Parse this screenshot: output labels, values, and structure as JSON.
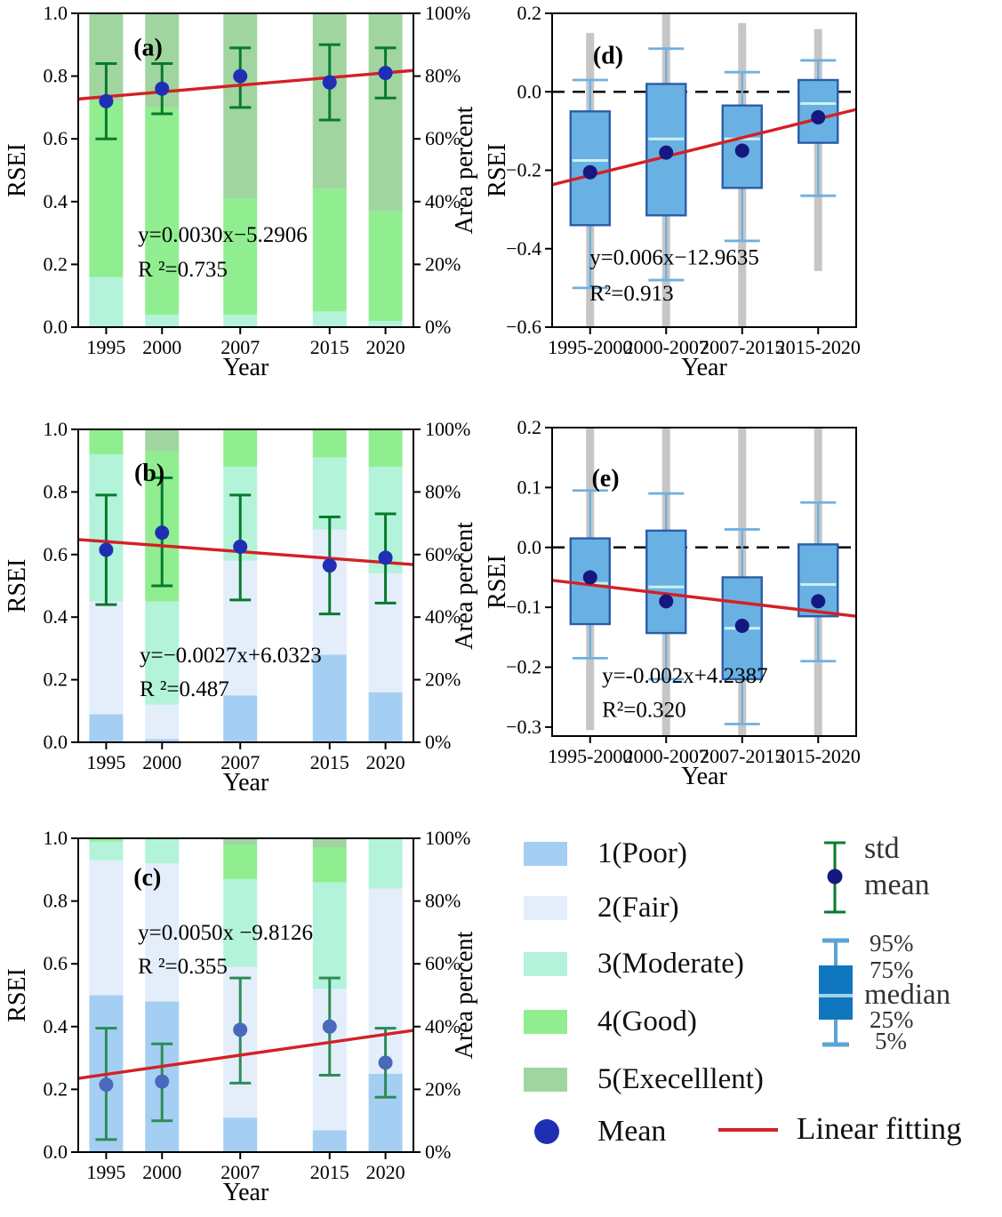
{
  "colors": {
    "class_colors": [
      "#a4cff3",
      "#e4eefb",
      "#b2f3da",
      "#90ee90",
      "#a0d5a0"
    ],
    "errorbar_green_dark": "#077a2e",
    "errorbar_green_sea": "#2e8b57",
    "mean_dot_blue": "#1e2fb4",
    "mean_dot_muted": "#4a69bd",
    "mean_dot_box": "#15197f",
    "fit_line_red": "#d42026",
    "box_fill": "#6ab1e3",
    "box_edge": "#2b5ca8",
    "whisker_blue": "#6fb0e0",
    "median_line": "#c9f2f0",
    "range_bar_gray": "#c6c6c6",
    "zero_line": "#000000",
    "axis_black": "#000000",
    "legend_box_fill": "#1077be",
    "legend_whisker": "#5ba3d4",
    "legend_median": "#9fd4ea"
  },
  "legend": {
    "classes": [
      {
        "label": "1(Poor)",
        "color": "#a4cff3"
      },
      {
        "label": "2(Fair)",
        "color": "#e4eefb"
      },
      {
        "label": "3(Moderate)",
        "color": "#b2f3da"
      },
      {
        "label": "4(Good)",
        "color": "#90ee90"
      },
      {
        "label": "5(Execelllent)",
        "color": "#a0d5a0"
      }
    ],
    "std_label": "std",
    "mean_label": "mean",
    "box_labels": {
      "p95": "95%",
      "p75": "75%",
      "median": "median",
      "p25": "25%",
      "p5": "5%"
    },
    "mean_row_label": "Mean",
    "fit_row_label": "Linear fitting"
  },
  "chart_data": [
    {
      "panel": "a",
      "type": "bar",
      "letter": "(a)",
      "xlabel": "Year",
      "ylabel": "RSEI",
      "ylabel_right": "Area percent",
      "ylim": [
        0,
        1
      ],
      "yticks_left": [
        {
          "v": 1.0,
          "label": "1.0"
        },
        {
          "v": 0.8,
          "label": "0.8"
        },
        {
          "v": 0.6,
          "label": "0.6"
        },
        {
          "v": 0.4,
          "label": "0.4"
        },
        {
          "v": 0.2,
          "label": "0.2"
        },
        {
          "v": 0.0,
          "label": "0.0"
        }
      ],
      "yticks_right": [
        {
          "v": 1.0,
          "label": "100%"
        },
        {
          "v": 0.8,
          "label": "80%"
        },
        {
          "v": 0.6,
          "label": "60%"
        },
        {
          "v": 0.4,
          "label": "40%"
        },
        {
          "v": 0.2,
          "label": "20%"
        },
        {
          "v": 0.0,
          "label": "0%"
        }
      ],
      "years": [
        1995,
        2000,
        2007,
        2015,
        2020
      ],
      "segments_percent": [
        [
          0,
          0,
          16,
          56,
          28
        ],
        [
          0,
          0,
          4,
          66,
          30
        ],
        [
          0,
          0,
          4,
          37,
          59
        ],
        [
          0,
          0,
          5,
          39,
          56
        ],
        [
          0,
          0,
          2,
          35,
          63
        ]
      ],
      "mean": [
        0.72,
        0.76,
        0.8,
        0.78,
        0.81
      ],
      "err_low": [
        0.6,
        0.68,
        0.7,
        0.66,
        0.73
      ],
      "err_high": [
        0.84,
        0.84,
        0.89,
        0.9,
        0.89
      ],
      "trend": {
        "y_start": 0.727,
        "y_end": 0.818
      },
      "equation": "y=0.0030x−5.2906",
      "r2": "R ²=0.735",
      "err_color": "#077a2e",
      "dot_color": "#1e2fb4",
      "annot": {
        "eq_x": 0.178,
        "eq_y1": 0.728,
        "eq_y2": 0.838,
        "letter_x": 0.165,
        "letter_y": 0.135
      }
    },
    {
      "panel": "b",
      "type": "bar",
      "letter": "(b)",
      "xlabel": "Year",
      "ylabel": "RSEI",
      "ylabel_right": "Area percent",
      "ylim": [
        0,
        1
      ],
      "yticks_left": [
        {
          "v": 1.0,
          "label": "1.0"
        },
        {
          "v": 0.8,
          "label": "0.8"
        },
        {
          "v": 0.6,
          "label": "0.6"
        },
        {
          "v": 0.4,
          "label": "0.4"
        },
        {
          "v": 0.2,
          "label": "0.2"
        },
        {
          "v": 0.0,
          "label": "0.0"
        }
      ],
      "yticks_right": [
        {
          "v": 1.0,
          "label": "100%"
        },
        {
          "v": 0.8,
          "label": "80%"
        },
        {
          "v": 0.6,
          "label": "60%"
        },
        {
          "v": 0.4,
          "label": "40%"
        },
        {
          "v": 0.2,
          "label": "20%"
        },
        {
          "v": 0.0,
          "label": "0%"
        }
      ],
      "years": [
        1995,
        2000,
        2007,
        2015,
        2020
      ],
      "segments_percent": [
        [
          9,
          36,
          47,
          8,
          0
        ],
        [
          1,
          11,
          33,
          48,
          7
        ],
        [
          15,
          43,
          30,
          12,
          0
        ],
        [
          28,
          40,
          23,
          9,
          0
        ],
        [
          16,
          38,
          34,
          12,
          0
        ]
      ],
      "mean": [
        0.615,
        0.67,
        0.625,
        0.565,
        0.59
      ],
      "err_low": [
        0.44,
        0.5,
        0.455,
        0.41,
        0.445
      ],
      "err_high": [
        0.79,
        0.845,
        0.79,
        0.72,
        0.73
      ],
      "trend": {
        "y_start": 0.648,
        "y_end": 0.568
      },
      "equation": "y=−0.0027x+6.0323",
      "r2": "R ²=0.487",
      "err_color": "#077a2e",
      "dot_color": "#1e2fb4",
      "annot": {
        "eq_x": 0.183,
        "eq_y1": 0.744,
        "eq_y2": 0.852,
        "letter_x": 0.167,
        "letter_y": 0.165
      }
    },
    {
      "panel": "c",
      "type": "bar",
      "letter": "(c)",
      "xlabel": "Year",
      "ylabel": "RSEI",
      "ylabel_right": "Area percent",
      "ylim": [
        0,
        1
      ],
      "yticks_left": [
        {
          "v": 1.0,
          "label": "1.0"
        },
        {
          "v": 0.8,
          "label": "0.8"
        },
        {
          "v": 0.6,
          "label": "0.6"
        },
        {
          "v": 0.4,
          "label": "0.4"
        },
        {
          "v": 0.2,
          "label": "0.2"
        },
        {
          "v": 0.0,
          "label": "0.0"
        }
      ],
      "yticks_right": [
        {
          "v": 1.0,
          "label": "100%"
        },
        {
          "v": 0.8,
          "label": "80%"
        },
        {
          "v": 0.6,
          "label": "60%"
        },
        {
          "v": 0.4,
          "label": "40%"
        },
        {
          "v": 0.2,
          "label": "20%"
        },
        {
          "v": 0.0,
          "label": "0%"
        }
      ],
      "years": [
        1995,
        2000,
        2007,
        2015,
        2020
      ],
      "segments_percent": [
        [
          50,
          43,
          6,
          1,
          0
        ],
        [
          48,
          44,
          8,
          0,
          0
        ],
        [
          11,
          48,
          28,
          11,
          2
        ],
        [
          7,
          45,
          34,
          11,
          3
        ],
        [
          25,
          59,
          16,
          0,
          0
        ]
      ],
      "mean": [
        0.215,
        0.225,
        0.39,
        0.4,
        0.285
      ],
      "err_low": [
        0.04,
        0.1,
        0.22,
        0.245,
        0.175
      ],
      "err_high": [
        0.395,
        0.345,
        0.555,
        0.555,
        0.395
      ],
      "trend": {
        "y_start": 0.235,
        "y_end": 0.388
      },
      "equation": "y=0.0050x −9.8126",
      "r2": "R ²=0.355",
      "err_color": "#2e8b57",
      "dot_color": "#4a69bd",
      "annot": {
        "eq_x": 0.178,
        "eq_y1": 0.323,
        "eq_y2": 0.43,
        "letter_x": 0.165,
        "letter_y": 0.15
      }
    },
    {
      "panel": "d",
      "type": "box",
      "letter": "(d)",
      "xlabel": "Year",
      "ylabel": "RSEI",
      "ylim": [
        -0.6,
        0.2
      ],
      "yticks_left": [
        {
          "v": 0.2,
          "label": "0.2"
        },
        {
          "v": 0.0,
          "label": "0.0"
        },
        {
          "v": -0.2,
          "label": "−0.2"
        },
        {
          "v": -0.4,
          "label": "−0.4"
        },
        {
          "v": -0.6,
          "label": "−0.6"
        }
      ],
      "categories": [
        "1995-2000",
        "2000-2007",
        "2007-2015",
        "2015-2020"
      ],
      "boxes": [
        {
          "q3": -0.05,
          "q1": -0.34,
          "median": -0.175,
          "mean": -0.205,
          "w_high": 0.03,
          "w_low": -0.5,
          "range_high": 0.15,
          "range_low": -0.62
        },
        {
          "q3": 0.02,
          "q1": -0.315,
          "median": -0.12,
          "mean": -0.155,
          "w_high": 0.11,
          "w_low": -0.48,
          "range_high": 0.25,
          "range_low": -0.62
        },
        {
          "q3": -0.035,
          "q1": -0.245,
          "median": -0.12,
          "mean": -0.15,
          "w_high": 0.05,
          "w_low": -0.38,
          "range_high": 0.175,
          "range_low": -0.62
        },
        {
          "q3": 0.03,
          "q1": -0.13,
          "median": -0.03,
          "mean": -0.065,
          "w_high": 0.08,
          "w_low": -0.265,
          "range_high": 0.16,
          "range_low": -0.457
        }
      ],
      "zero_line": true,
      "trend": {
        "y_start": -0.237,
        "y_end": -0.045
      },
      "equation": "y=0.006x−12.9635",
      "r2": "R²=0.913",
      "annot": {
        "eq_x": 0.123,
        "eq_y1": 0.8,
        "eq_y2": 0.915,
        "letter_x": 0.134,
        "letter_y": 0.16
      }
    },
    {
      "panel": "e",
      "type": "box",
      "letter": "(e)",
      "xlabel": "Year",
      "ylabel": "RSEI",
      "ylim": [
        -0.315,
        0.2
      ],
      "yticks_left": [
        {
          "v": 0.2,
          "label": "0.2"
        },
        {
          "v": 0.1,
          "label": "0.1"
        },
        {
          "v": 0.0,
          "label": "0.0"
        },
        {
          "v": -0.1,
          "label": "−0.1"
        },
        {
          "v": -0.2,
          "label": "−0.2"
        },
        {
          "v": -0.3,
          "label": "−0.3"
        }
      ],
      "categories": [
        "1995-2000",
        "2000-2007",
        "2007-2015",
        "2015-2020"
      ],
      "boxes": [
        {
          "q3": 0.015,
          "q1": -0.128,
          "median": -0.06,
          "mean": -0.05,
          "w_high": 0.095,
          "w_low": -0.185,
          "range_high": 0.25,
          "range_low": -0.305
        },
        {
          "q3": 0.028,
          "q1": -0.143,
          "median": -0.066,
          "mean": -0.09,
          "w_high": 0.09,
          "w_low": -0.22,
          "range_high": 0.25,
          "range_low": -0.34
        },
        {
          "q3": -0.05,
          "q1": -0.22,
          "median": -0.135,
          "mean": -0.131,
          "w_high": 0.03,
          "w_low": -0.295,
          "range_high": 0.25,
          "range_low": -0.34
        },
        {
          "q3": 0.005,
          "q1": -0.115,
          "median": -0.062,
          "mean": -0.09,
          "w_high": 0.075,
          "w_low": -0.19,
          "range_high": 0.25,
          "range_low": -0.34
        }
      ],
      "zero_line": true,
      "trend": {
        "y_start": -0.055,
        "y_end": -0.115
      },
      "equation": "y=-0.002x+4.2387",
      "r2": "R²=0.320",
      "annot": {
        "eq_x": 0.164,
        "eq_y1": 0.827,
        "eq_y2": 0.938,
        "letter_x": 0.13,
        "letter_y": 0.19
      }
    }
  ]
}
